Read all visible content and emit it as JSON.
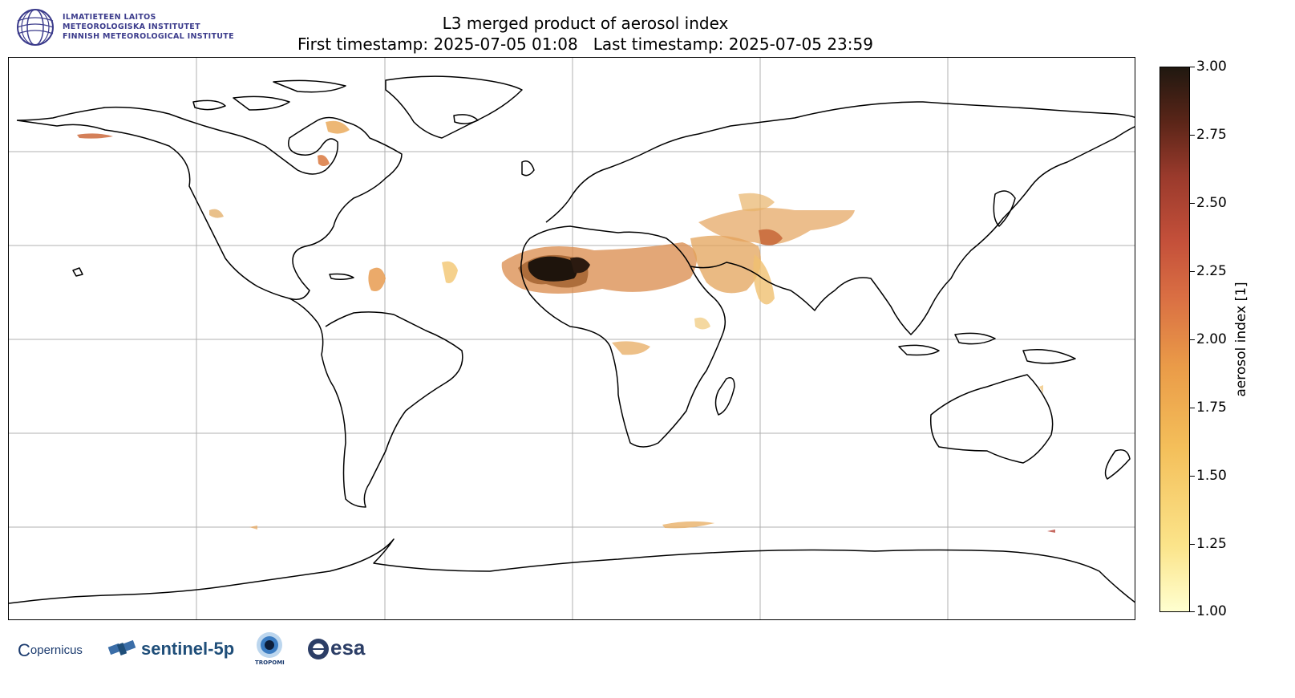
{
  "header": {
    "institute_lines": [
      "ILMATIETEEN LAITOS",
      "METEOROLOGISKA INSTITUTET",
      "FINNISH METEOROLOGICAL INSTITUTE"
    ],
    "title_line1": "L3 merged product of aerosol index",
    "title_line2": "First timestamp: 2025-07-05 01:08   Last timestamp: 2025-07-05 23:59"
  },
  "colorbar": {
    "label": "aerosol index [1]",
    "min": 1.0,
    "max": 3.0,
    "ticks": [
      "3.00",
      "2.75",
      "2.50",
      "2.25",
      "2.00",
      "1.75",
      "1.50",
      "1.25",
      "1.00"
    ],
    "colors": [
      "#ffffd0",
      "#fbe48a",
      "#f4bf5a",
      "#ea9b48",
      "#d96e43",
      "#c4503a",
      "#9a3a2c",
      "#5a2518",
      "#201810"
    ]
  },
  "logos": {
    "copernicus": "opernicus",
    "sentinel": "sentinel-5p",
    "tropomi": "TROPOMI",
    "esa": "esa"
  },
  "map": {
    "projection": "equirectangular",
    "gridlines": true,
    "aerosol_hotspots": [
      {
        "region": "Sahara (Mali/Mauritania)",
        "level": 3.0
      },
      {
        "region": "Arabian Peninsula",
        "level": 1.9
      },
      {
        "region": "Iran / Central Asia",
        "level": 1.8
      },
      {
        "region": "Caribbean",
        "level": 1.8
      },
      {
        "region": "Central Africa",
        "level": 1.6
      },
      {
        "region": "Hudson Bay / Canada",
        "level": 1.7
      }
    ]
  }
}
